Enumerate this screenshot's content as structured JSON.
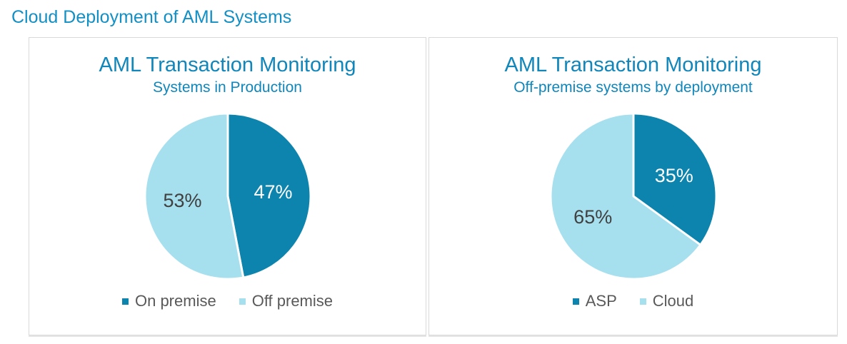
{
  "page_title": "Cloud Deployment of AML Systems",
  "colors": {
    "page_title": "#1290c5",
    "chart_title": "#1086bb",
    "legend_text": "#595959",
    "panel_border": "#d9d9d9",
    "slice_dark": "#0c84ad",
    "slice_light": "#a6dfee"
  },
  "chart_data": [
    {
      "type": "pie",
      "title": "AML Transaction Monitoring",
      "subtitle": "Systems in Production",
      "labels": [
        "On premise",
        "Off premise"
      ],
      "values": [
        47,
        53
      ],
      "data_labels": [
        "47%",
        "53%"
      ],
      "colors": [
        "#0c84ad",
        "#a6dfee"
      ],
      "data_label_colors": [
        "#ffffff",
        "#404040"
      ],
      "start_angle_deg": 0,
      "direction": "clockwise",
      "legend_position": "bottom"
    },
    {
      "type": "pie",
      "title": "AML Transaction Monitoring",
      "subtitle": "Off-premise systems by deployment",
      "labels": [
        "ASP",
        "Cloud"
      ],
      "values": [
        35,
        65
      ],
      "data_labels": [
        "35%",
        "65%"
      ],
      "colors": [
        "#0c84ad",
        "#a6dfee"
      ],
      "data_label_colors": [
        "#ffffff",
        "#404040"
      ],
      "start_angle_deg": 0,
      "direction": "clockwise",
      "legend_position": "bottom"
    }
  ]
}
